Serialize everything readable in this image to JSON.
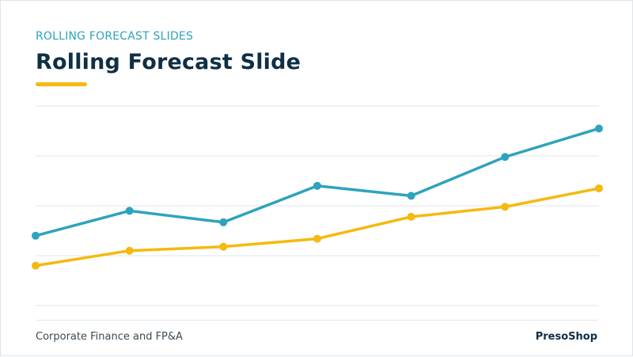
{
  "header": {
    "kicker": "ROLLING FORECAST SLIDES",
    "title": "Rolling Forecast Slide"
  },
  "footer": {
    "left": "Corporate Finance and FP&A",
    "right": "PresoShop"
  },
  "colors": {
    "accent_teal": "#2ea3bd",
    "accent_yellow": "#f5b90f",
    "title": "#0f2f45",
    "grid": "#dfe5ea"
  },
  "chart_data": {
    "type": "line",
    "title": "",
    "xlabel": "",
    "ylabel": "",
    "grid": true,
    "legend": "none",
    "x": [
      1,
      2,
      3,
      4,
      5,
      6,
      7
    ],
    "ylim": [
      0,
      4
    ],
    "gridlines_y": [
      0,
      1,
      2,
      3,
      4
    ],
    "series": [
      {
        "color": "#2ea3bd",
        "values": [
          1.4,
          1.9,
          1.67,
          2.4,
          2.2,
          2.98,
          3.55
        ]
      },
      {
        "color": "#f5b90f",
        "values": [
          0.8,
          1.1,
          1.18,
          1.34,
          1.78,
          1.98,
          2.35
        ]
      }
    ]
  }
}
